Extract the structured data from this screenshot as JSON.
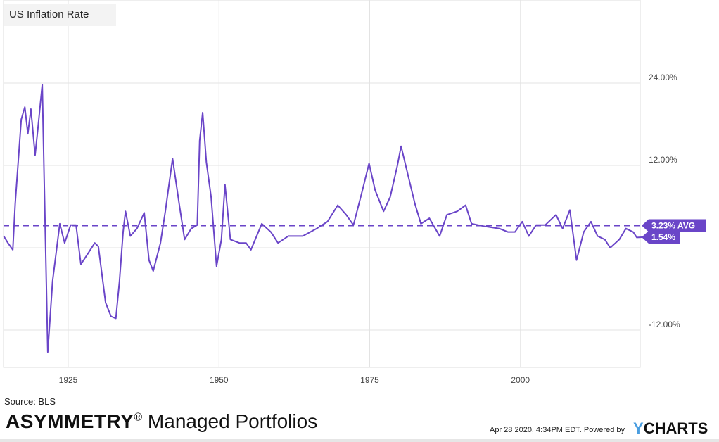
{
  "chart_data": {
    "type": "line",
    "title": "US Inflation Rate",
    "xlabel": "",
    "ylabel": "",
    "xlim": [
      1914.3,
      2020.3
    ],
    "ylim": [
      -16.5,
      34
    ],
    "x_ticks": [
      1925,
      1950,
      1975,
      2000
    ],
    "x_tick_labels": [
      "1925",
      "1950",
      "1975",
      "2000"
    ],
    "y_ticks": [
      24,
      12,
      0,
      -12
    ],
    "y_tick_labels": [
      "24.00%",
      "12.00%",
      "",
      "-12.00%"
    ],
    "grid": true,
    "series_color": "#6a45c8",
    "average": {
      "value": 3.23,
      "label": "3.23% AVG"
    },
    "last": {
      "value": 1.54,
      "label": "1.54%"
    },
    "series": [
      {
        "name": "US Inflation Rate",
        "points": [
          [
            1914.3,
            1.7
          ],
          [
            1915,
            0.7
          ],
          [
            1915.8,
            -0.3
          ],
          [
            1916.2,
            6.4
          ],
          [
            1917.2,
            18.7
          ],
          [
            1917.8,
            20.5
          ],
          [
            1918.3,
            16.6
          ],
          [
            1918.8,
            20.2
          ],
          [
            1919.5,
            13.5
          ],
          [
            1920,
            17.6
          ],
          [
            1920.7,
            23.8
          ],
          [
            1921,
            10.5
          ],
          [
            1921.6,
            -15.2
          ],
          [
            1922.4,
            -4.9
          ],
          [
            1923.6,
            3.5
          ],
          [
            1924.4,
            0.7
          ],
          [
            1925.4,
            3.3
          ],
          [
            1926.3,
            3.3
          ],
          [
            1927.1,
            -2.4
          ],
          [
            1928.3,
            -0.8
          ],
          [
            1929.4,
            0.7
          ],
          [
            1930,
            0.2
          ],
          [
            1931.2,
            -8
          ],
          [
            1932.1,
            -10
          ],
          [
            1932.9,
            -10.3
          ],
          [
            1933.5,
            -4.9
          ],
          [
            1934.1,
            2.3
          ],
          [
            1934.5,
            5.3
          ],
          [
            1935.3,
            1.7
          ],
          [
            1936.4,
            2.8
          ],
          [
            1937.6,
            5.1
          ],
          [
            1938.4,
            -1.8
          ],
          [
            1939.1,
            -3.4
          ],
          [
            1940.3,
            0.7
          ],
          [
            1941.1,
            5.3
          ],
          [
            1942.3,
            13
          ],
          [
            1943.4,
            6.4
          ],
          [
            1944.3,
            1.2
          ],
          [
            1945.4,
            2.8
          ],
          [
            1946.4,
            3.3
          ],
          [
            1946.8,
            15.6
          ],
          [
            1947.3,
            19.7
          ],
          [
            1947.9,
            12.5
          ],
          [
            1948.7,
            7.4
          ],
          [
            1949.6,
            -2.7
          ],
          [
            1950.4,
            1.2
          ],
          [
            1951,
            9.2
          ],
          [
            1951.9,
            1.2
          ],
          [
            1953.4,
            0.7
          ],
          [
            1954.5,
            0.7
          ],
          [
            1955.3,
            -0.3
          ],
          [
            1957.1,
            3.5
          ],
          [
            1958.6,
            2.3
          ],
          [
            1959.8,
            0.7
          ],
          [
            1961.5,
            1.7
          ],
          [
            1963.9,
            1.7
          ],
          [
            1966.2,
            2.8
          ],
          [
            1968,
            3.8
          ],
          [
            1969.7,
            6.2
          ],
          [
            1971.1,
            4.8
          ],
          [
            1972.3,
            3.3
          ],
          [
            1973.8,
            8.4
          ],
          [
            1974.9,
            12.3
          ],
          [
            1975.9,
            8.4
          ],
          [
            1977.3,
            5.3
          ],
          [
            1978.4,
            7.4
          ],
          [
            1979.6,
            12
          ],
          [
            1980.2,
            14.8
          ],
          [
            1981.1,
            11.5
          ],
          [
            1982.5,
            6.4
          ],
          [
            1983.5,
            3.5
          ],
          [
            1984.9,
            4.3
          ],
          [
            1986.6,
            1.7
          ],
          [
            1987.8,
            4.8
          ],
          [
            1989.5,
            5.3
          ],
          [
            1990.9,
            6.2
          ],
          [
            1991.9,
            3.5
          ],
          [
            1994.2,
            3.1
          ],
          [
            1996.5,
            2.8
          ],
          [
            1997.9,
            2.3
          ],
          [
            1999.1,
            2.3
          ],
          [
            2000.3,
            3.8
          ],
          [
            2001.4,
            1.7
          ],
          [
            2002.6,
            3.3
          ],
          [
            2004.1,
            3.3
          ],
          [
            2005.9,
            4.8
          ],
          [
            2007,
            2.8
          ],
          [
            2008.2,
            5.5
          ],
          [
            2009.3,
            -1.8
          ],
          [
            2010.5,
            2.3
          ],
          [
            2011.7,
            3.8
          ],
          [
            2012.8,
            1.7
          ],
          [
            2014,
            1.2
          ],
          [
            2014.9,
            0
          ],
          [
            2016.4,
            1.2
          ],
          [
            2017.5,
            2.8
          ],
          [
            2018.7,
            2.3
          ],
          [
            2019.3,
            1.5
          ],
          [
            2020.2,
            1.54
          ]
        ]
      }
    ]
  },
  "footer": {
    "source": "Source: BLS",
    "brand_bold": "ASYMMETRY",
    "brand_mark": "®",
    "brand_rest": " Managed Portfolios",
    "timestamp": "Apr 28 2020, 4:34PM EDT.  Powered by",
    "ycharts_y": "Y",
    "ycharts_rest": "CHARTS"
  }
}
